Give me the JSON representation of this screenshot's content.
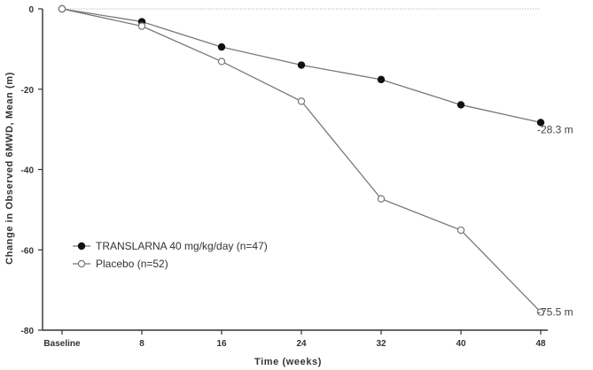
{
  "chart_data": {
    "type": "line",
    "title": "",
    "xlabel": "Time (weeks)",
    "ylabel": "Change in Observed 6MWD, Mean (m)",
    "categories": [
      "Baseline",
      "8",
      "16",
      "24",
      "32",
      "40",
      "48"
    ],
    "x": [
      0,
      8,
      16,
      24,
      32,
      40,
      48
    ],
    "ylim": [
      -80,
      0
    ],
    "yticks": [
      0,
      -20,
      -40,
      -60,
      -80
    ],
    "grid": false,
    "zero_reference_line": true,
    "legend_position": "lower-left",
    "series": [
      {
        "name": "TRANSLARNA 40 mg/kg/day (n=47)",
        "marker": "filled-circle",
        "values": [
          0,
          -3.2,
          -9.5,
          -14,
          -17.6,
          -23.9,
          -28.3
        ],
        "end_label": "-28.3 m"
      },
      {
        "name": "Placebo (n=52)",
        "marker": "open-circle",
        "values": [
          0,
          -4.3,
          -13.1,
          -23,
          -47.3,
          -55.1,
          -75.5
        ],
        "end_label": "-75.5 m"
      }
    ]
  }
}
